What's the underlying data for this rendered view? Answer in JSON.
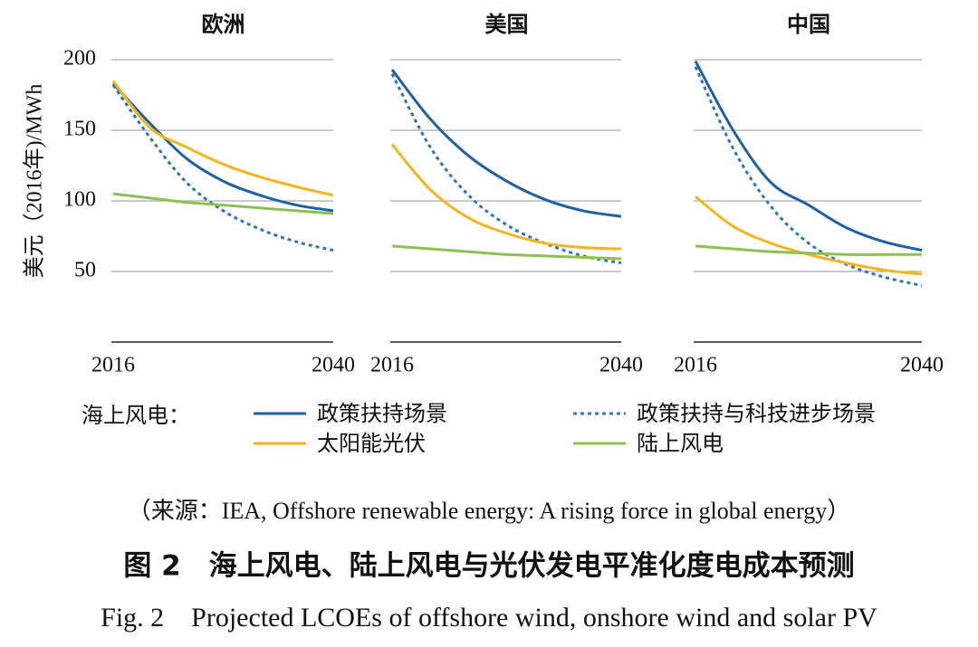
{
  "chart_data": [
    {
      "type": "line",
      "title": "欧洲",
      "ylabel": "美元（2016年)/MWh",
      "x": [
        2016,
        2020,
        2024,
        2028,
        2032,
        2036,
        2040
      ],
      "xlim": [
        2016,
        2040
      ],
      "xticks": [
        2016,
        2040
      ],
      "ylim": [
        0,
        200
      ],
      "yticks": [
        50,
        100,
        150,
        200
      ],
      "grid": true,
      "series": [
        {
          "name": "政策扶持场景",
          "color": "#1f5fa6",
          "linestyle": "solid",
          "values": [
            183,
            155,
            130,
            114,
            104,
            97,
            93
          ]
        },
        {
          "name": "政策扶持与科技进步场景",
          "color": "#2e75b6",
          "linestyle": "dotted",
          "values": [
            182,
            145,
            113,
            93,
            80,
            71,
            65
          ]
        },
        {
          "name": "太阳能光伏",
          "color": "#f2b51c",
          "linestyle": "solid",
          "values": [
            185,
            152,
            138,
            126,
            117,
            110,
            104
          ]
        },
        {
          "name": "陆上风电",
          "color": "#8cc152",
          "linestyle": "solid",
          "values": [
            105,
            102,
            99,
            97,
            95,
            93,
            91
          ]
        }
      ]
    },
    {
      "type": "line",
      "title": "美国",
      "x": [
        2016,
        2020,
        2024,
        2028,
        2032,
        2036,
        2040
      ],
      "xlim": [
        2016,
        2040
      ],
      "xticks": [
        2016,
        2040
      ],
      "ylim": [
        0,
        200
      ],
      "yticks": [
        50,
        100,
        150,
        200
      ],
      "grid": true,
      "series": [
        {
          "name": "政策扶持场景",
          "color": "#1f5fa6",
          "linestyle": "solid",
          "values": [
            193,
            158,
            132,
            114,
            101,
            93,
            89
          ]
        },
        {
          "name": "政策扶持与科技进步场景",
          "color": "#2e75b6",
          "linestyle": "dotted",
          "values": [
            190,
            138,
            104,
            83,
            70,
            61,
            56
          ]
        },
        {
          "name": "太阳能光伏",
          "color": "#f2b51c",
          "linestyle": "solid",
          "values": [
            140,
            108,
            88,
            77,
            70,
            67,
            66
          ]
        },
        {
          "name": "陆上风电",
          "color": "#8cc152",
          "linestyle": "solid",
          "values": [
            68,
            66,
            64,
            62,
            61,
            60,
            59
          ]
        }
      ]
    },
    {
      "type": "line",
      "title": "中国",
      "x": [
        2016,
        2020,
        2024,
        2028,
        2032,
        2036,
        2040
      ],
      "xlim": [
        2016,
        2040
      ],
      "xticks": [
        2016,
        2040
      ],
      "ylim": [
        0,
        200
      ],
      "yticks": [
        50,
        100,
        150,
        200
      ],
      "grid": true,
      "series": [
        {
          "name": "政策扶持场景",
          "color": "#1f5fa6",
          "linestyle": "solid",
          "values": [
            199,
            150,
            113,
            97,
            81,
            71,
            65
          ]
        },
        {
          "name": "政策扶持与科技进步场景",
          "color": "#2e75b6",
          "linestyle": "dotted",
          "values": [
            195,
            137,
            96,
            70,
            55,
            46,
            40
          ]
        },
        {
          "name": "太阳能光伏",
          "color": "#f2b51c",
          "linestyle": "solid",
          "values": [
            103,
            82,
            70,
            62,
            56,
            51,
            48
          ]
        },
        {
          "name": "陆上风电",
          "color": "#8cc152",
          "linestyle": "solid",
          "values": [
            68,
            66,
            64,
            63,
            62,
            62,
            62
          ]
        }
      ]
    }
  ],
  "legend_title": "海上风电：",
  "source": "（来源：IEA, Offshore renewable energy: A rising force in global energy）",
  "figure_title": "图 2　海上风电、陆上风电与光伏发电平准化度电成本预测",
  "figure_title_en": "Fig. 2　Projected LCOEs of offshore wind, onshore wind and solar PV"
}
